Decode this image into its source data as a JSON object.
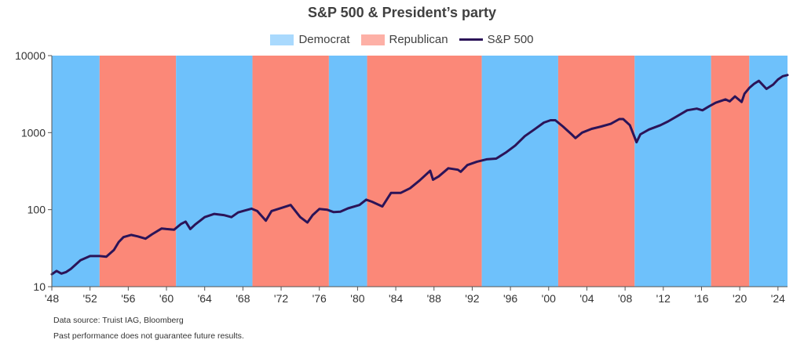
{
  "chart_data": {
    "type": "line",
    "title": "S&P 500 & President’s party",
    "yscale": "log",
    "ylim": [
      10,
      10000
    ],
    "xlim": [
      1948,
      2025
    ],
    "y_ticks": [
      10,
      100,
      1000,
      10000
    ],
    "y_tick_labels": [
      "10",
      "100",
      "1000",
      "10000"
    ],
    "x_ticks": [
      1948,
      1952,
      1956,
      1960,
      1964,
      1968,
      1972,
      1976,
      1980,
      1984,
      1988,
      1992,
      1996,
      2000,
      2004,
      2008,
      2012,
      2016,
      2020,
      2024
    ],
    "x_tick_labels": [
      "'48",
      "'52",
      "'56",
      "'60",
      "'64",
      "'68",
      "'72",
      "'76",
      "'80",
      "'84",
      "'88",
      "'92",
      "'96",
      "'00",
      "'04",
      "'08",
      "'12",
      "'16",
      "'20",
      "'24"
    ],
    "legend": [
      {
        "name": "Democrat",
        "color": "#6ec1fb",
        "kind": "area"
      },
      {
        "name": "Republican",
        "color": "#fb8878",
        "kind": "area"
      },
      {
        "name": "S&P 500",
        "color": "#2b1458",
        "kind": "line"
      }
    ],
    "legend_position": "top-center",
    "grid": false,
    "party_periods": [
      {
        "party": "Democrat",
        "start": 1948,
        "end": 1953
      },
      {
        "party": "Republican",
        "start": 1953,
        "end": 1961
      },
      {
        "party": "Democrat",
        "start": 1961,
        "end": 1969
      },
      {
        "party": "Republican",
        "start": 1969,
        "end": 1977
      },
      {
        "party": "Democrat",
        "start": 1977,
        "end": 1981
      },
      {
        "party": "Republican",
        "start": 1981,
        "end": 1993
      },
      {
        "party": "Democrat",
        "start": 1993,
        "end": 2001
      },
      {
        "party": "Republican",
        "start": 2001,
        "end": 2009
      },
      {
        "party": "Democrat",
        "start": 2009,
        "end": 2017
      },
      {
        "party": "Republican",
        "start": 2017,
        "end": 2021
      },
      {
        "party": "Democrat",
        "start": 2021,
        "end": 2025
      }
    ],
    "series": [
      {
        "name": "S&P 500",
        "x": [
          1948,
          1948.5,
          1949,
          1949.5,
          1950,
          1951,
          1952,
          1953,
          1953.7,
          1954.5,
          1955,
          1955.5,
          1956.3,
          1957,
          1957.8,
          1958.5,
          1959.5,
          1960,
          1960.8,
          1961.5,
          1962,
          1962.5,
          1963,
          1964,
          1965,
          1966,
          1966.8,
          1967.5,
          1968,
          1968.9,
          1969.5,
          1970.4,
          1971,
          1972,
          1973,
          1974,
          1974.75,
          1975.3,
          1976,
          1976.8,
          1977.5,
          1978.2,
          1979,
          1980.2,
          1980.9,
          1981.5,
          1982.6,
          1983.5,
          1984.5,
          1985.5,
          1986.5,
          1987.6,
          1987.9,
          1988.5,
          1989.5,
          1990.5,
          1990.8,
          1991.5,
          1992.5,
          1993.5,
          1994.5,
          1995.5,
          1996.5,
          1997.5,
          1998.5,
          1999.5,
          2000.2,
          2000.7,
          2001.5,
          2002.4,
          2002.8,
          2003.5,
          2004.5,
          2005.5,
          2006.5,
          2007.4,
          2007.8,
          2008.5,
          2009.2,
          2009.6,
          2010.5,
          2011.7,
          2012.5,
          2013.5,
          2014.5,
          2015.5,
          2016.1,
          2016.8,
          2017.5,
          2018.5,
          2018.95,
          2019.5,
          2020.2,
          2020.5,
          2021,
          2021.5,
          2022,
          2022.8,
          2023.5,
          2024,
          2024.5,
          2025
        ],
        "values": [
          14.5,
          16,
          14.8,
          15.5,
          17,
          22,
          25,
          25,
          24.5,
          30,
          38,
          44,
          47,
          45,
          42,
          48,
          57,
          56,
          55,
          65,
          70,
          56,
          64,
          80,
          88,
          85,
          80,
          92,
          96,
          103,
          96,
          72,
          96,
          105,
          115,
          80,
          68,
          85,
          102,
          100,
          93,
          94,
          104,
          115,
          135,
          127,
          110,
          165,
          165,
          190,
          240,
          320,
          245,
          270,
          345,
          330,
          310,
          380,
          420,
          450,
          460,
          550,
          680,
          900,
          1100,
          1350,
          1450,
          1450,
          1200,
          950,
          850,
          1000,
          1120,
          1200,
          1300,
          1500,
          1500,
          1250,
          750,
          950,
          1100,
          1250,
          1400,
          1650,
          1950,
          2050,
          1950,
          2200,
          2450,
          2700,
          2550,
          2950,
          2500,
          3200,
          3800,
          4300,
          4700,
          3700,
          4200,
          4900,
          5400,
          5600
        ]
      }
    ]
  },
  "footnotes": {
    "source": "Data source: Truist IAG, Bloomberg",
    "disclaimer": "Past performance does not guarantee future results."
  }
}
